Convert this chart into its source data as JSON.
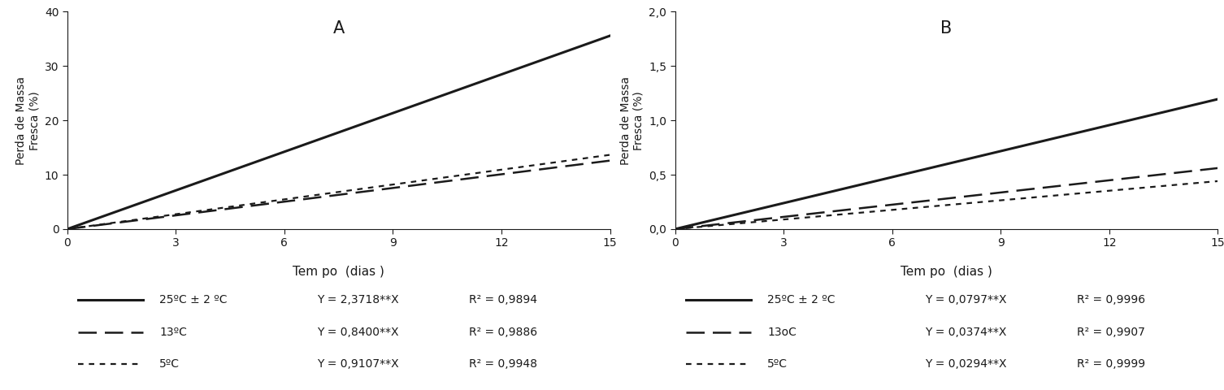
{
  "panel_A": {
    "title": "A",
    "slopes": [
      2.3718,
      0.84,
      0.9107
    ],
    "ylabel": "Perda de Massa\nFresca (%)",
    "xlabel": "Tem po  (dias )",
    "xlim": [
      0,
      15
    ],
    "ylim": [
      0,
      40
    ],
    "yticks": [
      0,
      10,
      20,
      30,
      40
    ],
    "ytick_labels": [
      "0",
      "10",
      "20",
      "30",
      "40"
    ],
    "xticks": [
      0,
      3,
      6,
      9,
      12,
      15
    ],
    "xtick_labels": [
      "0",
      "3",
      "6",
      "9",
      "12",
      "15"
    ],
    "legend_labels": [
      "25ºC ± 2 ºC",
      "13ºC",
      "5ºC"
    ],
    "legend_equations": [
      "Y = 2,3718**X",
      "Y = 0,8400**X",
      "Y = 0,9107**X"
    ],
    "legend_r2": [
      "R² = 0,9894",
      "R² = 0,9886",
      "R² = 0,9948"
    ]
  },
  "panel_B": {
    "title": "B",
    "slopes": [
      0.0797,
      0.0374,
      0.0294
    ],
    "ylabel": "Perda de Massa\nFresca (%)",
    "xlabel": "Tem po  (dias )",
    "xlim": [
      0,
      15
    ],
    "ylim": [
      0,
      2.0
    ],
    "yticks": [
      0.0,
      0.5,
      1.0,
      1.5,
      2.0
    ],
    "ytick_labels": [
      "0,0",
      "0,5",
      "1,0",
      "1,5",
      "2,0"
    ],
    "xticks": [
      0,
      3,
      6,
      9,
      12,
      15
    ],
    "xtick_labels": [
      "0",
      "3",
      "6",
      "9",
      "12",
      "15"
    ],
    "legend_labels": [
      "25ºC ± 2 ºC",
      "13oC",
      "5ºC"
    ],
    "legend_equations": [
      "Y = 0,0797**X",
      "Y = 0,0374**X",
      "Y = 0,0294**X"
    ],
    "legend_r2": [
      "R² = 0,9996",
      "R² = 0,9907",
      "R² = 0,9999"
    ]
  },
  "background_color": "#ffffff",
  "text_color": "#1a1a1a",
  "axis_fontsize": 10,
  "title_fontsize": 15,
  "xlabel_fontsize": 11,
  "legend_fontsize": 10
}
